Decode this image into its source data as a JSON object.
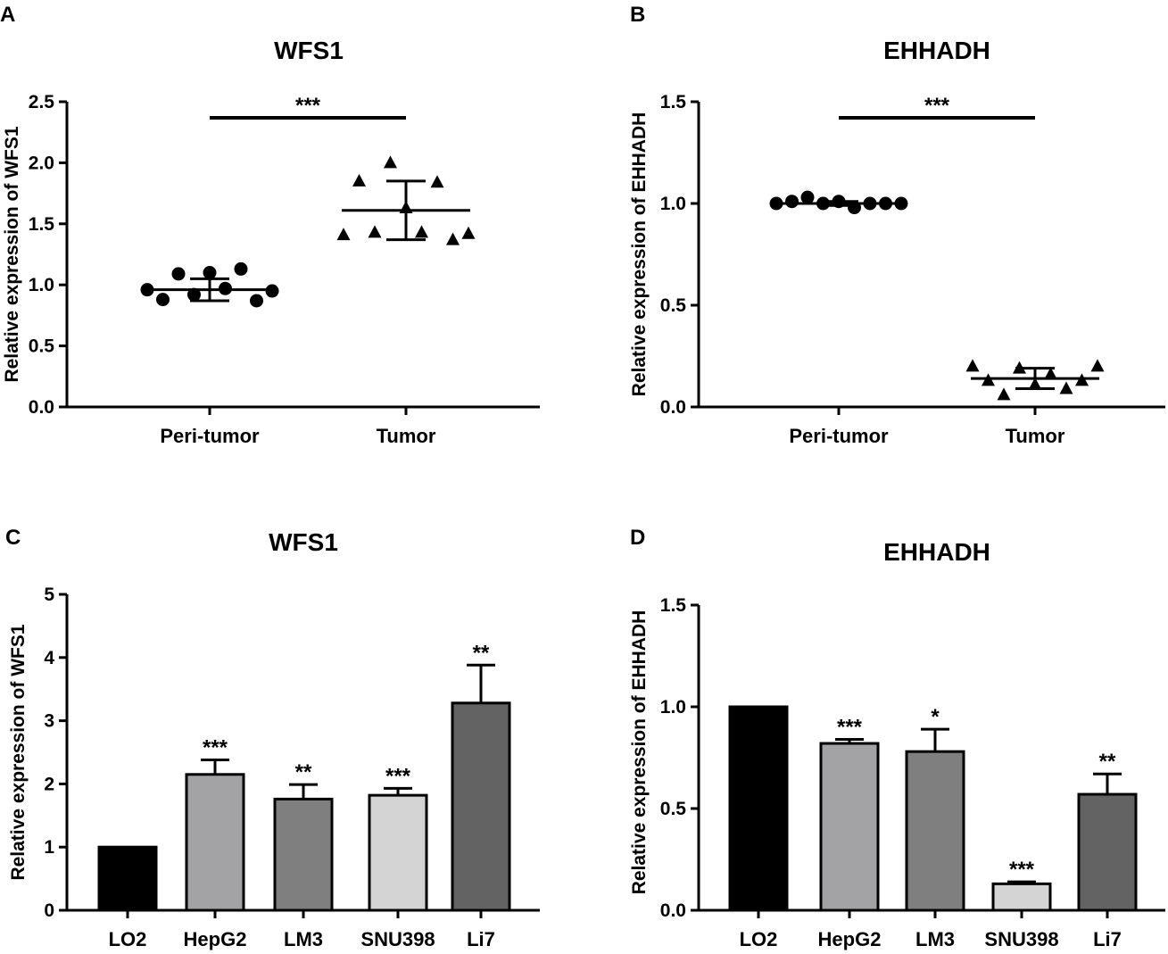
{
  "chart_data": [
    {
      "panel": "A",
      "type": "scatter",
      "title": "WFS1",
      "ylabel": "Relative expression of WFS1",
      "ylim": [
        0,
        2.5
      ],
      "yticks": [
        "0.0",
        "0.5",
        "1.0",
        "1.5",
        "2.0",
        "2.5"
      ],
      "categories": [
        "Peri-tumor",
        "Tumor"
      ],
      "significance": "***",
      "series": [
        {
          "name": "Peri-tumor",
          "marker": "circle",
          "mean": 0.96,
          "sd": 0.09,
          "values": [
            0.96,
            0.88,
            1.09,
            0.92,
            1.1,
            0.97,
            1.13,
            0.87,
            0.95
          ]
        },
        {
          "name": "Tumor",
          "marker": "triangle",
          "mean": 1.61,
          "sd": 0.24,
          "values": [
            1.41,
            1.85,
            1.43,
            2.0,
            1.63,
            1.43,
            1.84,
            1.37,
            1.42
          ]
        }
      ]
    },
    {
      "panel": "B",
      "type": "scatter",
      "title": "EHHADH",
      "ylabel": "Relative expression of EHHADH",
      "ylim": [
        0,
        1.5
      ],
      "yticks": [
        "0.0",
        "0.5",
        "1.0",
        "1.5"
      ],
      "categories": [
        "Peri-tumor",
        "Tumor"
      ],
      "significance": "***",
      "series": [
        {
          "name": "Peri-tumor",
          "marker": "circle",
          "mean": 1.0,
          "sd": 0.01,
          "values": [
            1.0,
            1.01,
            1.03,
            1.0,
            1.01,
            0.98,
            1.0,
            1.0,
            1.0
          ]
        },
        {
          "name": "Tumor",
          "marker": "triangle",
          "mean": 0.14,
          "sd": 0.05,
          "values": [
            0.2,
            0.13,
            0.06,
            0.19,
            0.11,
            0.16,
            0.09,
            0.13,
            0.2
          ]
        }
      ]
    },
    {
      "panel": "C",
      "type": "bar",
      "title": "WFS1",
      "ylabel": "Relative expression of WFS1",
      "ylim": [
        0,
        5
      ],
      "yticks": [
        "0",
        "1",
        "2",
        "3",
        "4",
        "5"
      ],
      "categories": [
        "LO2",
        "HepG2",
        "LM3",
        "SNU398",
        "Li7"
      ],
      "values": [
        1.0,
        2.15,
        1.76,
        1.82,
        3.28
      ],
      "errors": [
        0,
        0.23,
        0.23,
        0.11,
        0.6
      ],
      "significance": [
        "",
        "***",
        "**",
        "***",
        "**"
      ],
      "colors": [
        "#000000",
        "#a3a3a6",
        "#7f7f7f",
        "#d4d4d4",
        "#636363"
      ]
    },
    {
      "panel": "D",
      "type": "bar",
      "title": "EHHADH",
      "ylabel": "Relative expression of EHHADH",
      "ylim": [
        0,
        1.5
      ],
      "yticks": [
        "0.0",
        "0.5",
        "1.0",
        "1.5"
      ],
      "categories": [
        "LO2",
        "HepG2",
        "LM3",
        "SNU398",
        "Li7"
      ],
      "values": [
        1.0,
        0.82,
        0.78,
        0.13,
        0.57
      ],
      "errors": [
        0,
        0.02,
        0.11,
        0.01,
        0.1
      ],
      "significance": [
        "",
        "***",
        "*",
        "***",
        "**"
      ],
      "colors": [
        "#000000",
        "#a3a3a6",
        "#7f7f7f",
        "#d4d4d4",
        "#636363"
      ]
    }
  ]
}
